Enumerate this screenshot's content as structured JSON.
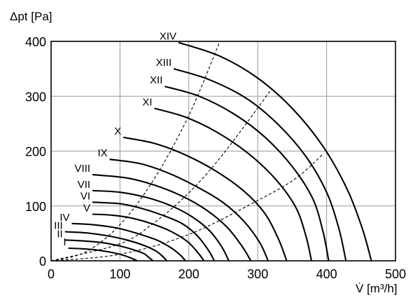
{
  "chart_data": {
    "type": "line",
    "title": "",
    "xlabel": "V̇ [m³/h]",
    "ylabel": "Δpt [Pa]",
    "xlim": [
      0,
      500
    ],
    "ylim": [
      0,
      400
    ],
    "x_ticks": [
      "0",
      "100",
      "200",
      "300",
      "400",
      "500"
    ],
    "y_ticks": [
      "0",
      "100",
      "200",
      "300",
      "400"
    ],
    "grid": true,
    "series": [
      {
        "name": "I",
        "kind": "fan-curve",
        "x": [
          25,
          45,
          65,
          85,
          100,
          110,
          118,
          125
        ],
        "y": [
          23,
          22,
          20,
          16,
          12,
          8,
          4,
          0
        ]
      },
      {
        "name": "II",
        "kind": "fan-curve",
        "x": [
          20,
          50,
          75,
          100,
          120,
          135,
          142,
          148
        ],
        "y": [
          38,
          36,
          33,
          27,
          20,
          13,
          6,
          0
        ]
      },
      {
        "name": "III",
        "kind": "fan-curve",
        "x": [
          20,
          50,
          80,
          110,
          135,
          152,
          162,
          168
        ],
        "y": [
          53,
          51,
          46,
          38,
          28,
          18,
          8,
          0
        ]
      },
      {
        "name": "IV",
        "kind": "fan-curve",
        "x": [
          30,
          60,
          95,
          125,
          155,
          175,
          188,
          195
        ],
        "y": [
          68,
          66,
          60,
          50,
          37,
          23,
          10,
          0
        ]
      },
      {
        "name": "V",
        "kind": "fan-curve",
        "x": [
          60,
          90,
          120,
          150,
          175,
          198,
          213,
          222
        ],
        "y": [
          85,
          83,
          77,
          66,
          53,
          35,
          15,
          0
        ]
      },
      {
        "name": "VI",
        "kind": "fan-curve",
        "x": [
          60,
          100,
          130,
          160,
          190,
          212,
          228,
          237
        ],
        "y": [
          107,
          104,
          96,
          84,
          68,
          46,
          20,
          0
        ]
      },
      {
        "name": "VII",
        "kind": "fan-curve",
        "x": [
          60,
          100,
          140,
          175,
          205,
          230,
          248,
          258
        ],
        "y": [
          128,
          125,
          115,
          100,
          80,
          55,
          25,
          0
        ]
      },
      {
        "name": "VIII",
        "kind": "fan-curve",
        "x": [
          60,
          110,
          150,
          190,
          225,
          255,
          277,
          290
        ],
        "y": [
          157,
          151,
          138,
          118,
          93,
          62,
          27,
          0
        ]
      },
      {
        "name": "IX",
        "kind": "fan-curve",
        "x": [
          85,
          130,
          170,
          210,
          250,
          280,
          303,
          315
        ],
        "y": [
          185,
          177,
          160,
          136,
          106,
          72,
          33,
          0
        ]
      },
      {
        "name": "X",
        "kind": "fan-curve",
        "x": [
          105,
          150,
          195,
          240,
          280,
          310,
          330,
          342
        ],
        "y": [
          225,
          214,
          193,
          163,
          127,
          87,
          40,
          0
        ]
      },
      {
        "name": "XI",
        "kind": "fan-curve",
        "x": [
          150,
          195,
          240,
          285,
          325,
          355,
          370,
          378
        ],
        "y": [
          278,
          262,
          235,
          197,
          150,
          98,
          45,
          0
        ]
      },
      {
        "name": "XII",
        "kind": "fan-curve",
        "x": [
          165,
          215,
          265,
          310,
          350,
          380,
          395,
          403
        ],
        "y": [
          318,
          300,
          268,
          226,
          172,
          113,
          52,
          0
        ]
      },
      {
        "name": "XIII",
        "kind": "fan-curve",
        "x": [
          178,
          230,
          285,
          330,
          370,
          400,
          418,
          428
        ],
        "y": [
          350,
          330,
          295,
          248,
          190,
          125,
          58,
          0
        ]
      },
      {
        "name": "XIV",
        "kind": "fan-curve",
        "x": [
          185,
          245,
          300,
          350,
          395,
          430,
          452,
          465
        ],
        "y": [
          398,
          373,
          333,
          278,
          208,
          130,
          58,
          0
        ]
      },
      {
        "name": "",
        "kind": "system-curve",
        "x": [
          0,
          50,
          100,
          150,
          200,
          245
        ],
        "y": [
          0,
          16,
          66,
          150,
          265,
          400
        ]
      },
      {
        "name": "",
        "kind": "system-curve",
        "x": [
          0,
          100,
          150,
          200,
          250,
          320
        ],
        "y": [
          0,
          31,
          70,
          124,
          195,
          313
        ]
      },
      {
        "name": "",
        "kind": "system-curve",
        "x": [
          0,
          100,
          200,
          300,
          355,
          395
        ],
        "y": [
          0,
          12,
          48,
          110,
          150,
          195
        ]
      }
    ]
  }
}
